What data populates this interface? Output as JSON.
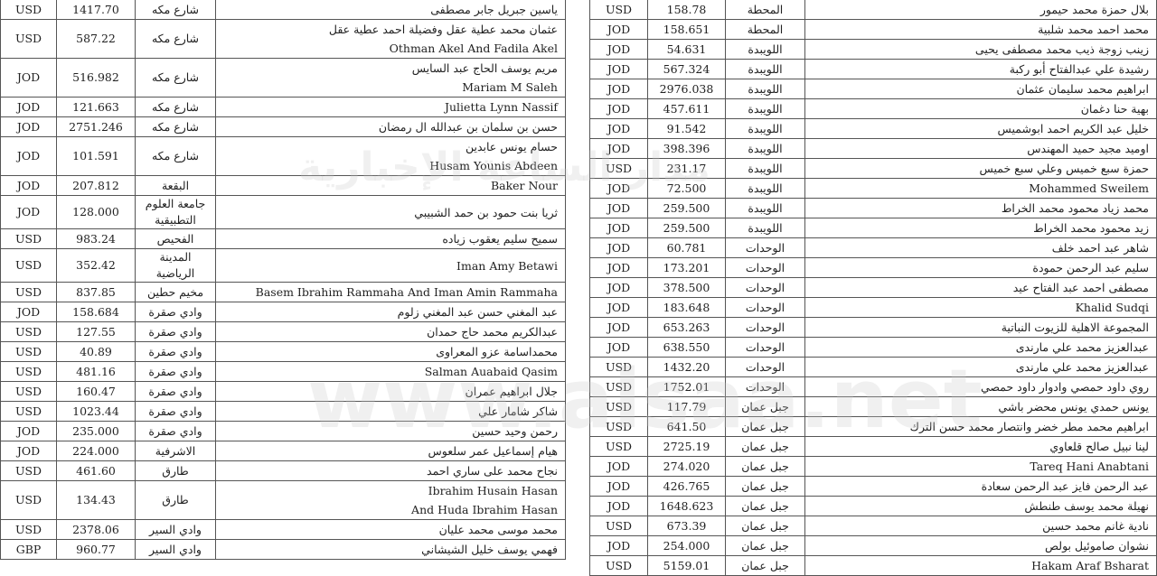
{
  "left_table": {
    "rows": [
      {
        "currency": "USD",
        "amount": "1417.70",
        "area": "شارع مكه",
        "name": [
          "ياسين جبريل جابر مصطفى"
        ]
      },
      {
        "currency": "USD",
        "amount": "587.22",
        "area": "شارع مكه",
        "name": [
          "عثمان محمد عطية عقل وفضيلة احمد عطية عقل",
          "Othman Akel And Fadila Akel"
        ]
      },
      {
        "currency": "JOD",
        "amount": "516.982",
        "area": "شارع مكه",
        "name": [
          "مريم يوسف الحاج عبد السايس",
          "Mariam M Saleh"
        ]
      },
      {
        "currency": "JOD",
        "amount": "121.663",
        "area": "شارع مكه",
        "name": [
          "Julietta Lynn Nassif"
        ]
      },
      {
        "currency": "JOD",
        "amount": "2751.246",
        "area": "شارع مكه",
        "name": [
          "حسن بن سلمان بن عبدالله ال رمضان"
        ]
      },
      {
        "currency": "JOD",
        "amount": "101.591",
        "area": "شارع مكه",
        "name": [
          "حسام يونس عابدين",
          "Husam Younis Abdeen"
        ]
      },
      {
        "currency": "JOD",
        "amount": "207.812",
        "area": "البقعة",
        "name": [
          "Baker Nour"
        ]
      },
      {
        "currency": "JOD",
        "amount": "128.000",
        "area": "جامعة العلوم التطبيقية",
        "name": [
          "ثريا بنت حمود بن حمد الشبيبي"
        ]
      },
      {
        "currency": "USD",
        "amount": "983.24",
        "area": "الفحيص",
        "name": [
          "سميح سليم يعقوب زياده"
        ]
      },
      {
        "currency": "USD",
        "amount": "352.42",
        "area": "المدينة الرياضية",
        "name": [
          "Iman Amy Betawi"
        ]
      },
      {
        "currency": "USD",
        "amount": "837.85",
        "area": "مخيم حطين",
        "name": [
          "Basem Ibrahim Rammaha And Iman Amin Rammaha"
        ]
      },
      {
        "currency": "JOD",
        "amount": "158.684",
        "area": "وادي صقرة",
        "name": [
          "عبد المغني حسن عبد المغني زلوم"
        ]
      },
      {
        "currency": "USD",
        "amount": "127.55",
        "area": "وادي صقرة",
        "name": [
          "عبدالكريم محمد حاج حمدان"
        ]
      },
      {
        "currency": "USD",
        "amount": "40.89",
        "area": "وادي صقرة",
        "name": [
          "محمداسامة عزو المعراوى"
        ]
      },
      {
        "currency": "USD",
        "amount": "481.16",
        "area": "وادي صقرة",
        "name": [
          "Salman Auabaid Qasim"
        ]
      },
      {
        "currency": "USD",
        "amount": "160.47",
        "area": "وادي صقرة",
        "name": [
          "جلال ابراهيم عمران"
        ]
      },
      {
        "currency": "USD",
        "amount": "1023.44",
        "area": "وادي صقرة",
        "name": [
          "شاكر شامار علي"
        ]
      },
      {
        "currency": "JOD",
        "amount": "235.000",
        "area": "وادي صقرة",
        "name": [
          "رحمن وحيد حسين"
        ]
      },
      {
        "currency": "JOD",
        "amount": "224.000",
        "area": "الاشرفية",
        "name": [
          "هيام إسماعيل عمر سلعوس"
        ]
      },
      {
        "currency": "USD",
        "amount": "461.60",
        "area": "طارق",
        "name": [
          "نجاح محمد على ساري احمد"
        ]
      },
      {
        "currency": "USD",
        "amount": "134.43",
        "area": "طارق",
        "name": [
          "Ibrahim Husain Hasan",
          "And Huda Ibrahim Hasan"
        ]
      },
      {
        "currency": "USD",
        "amount": "2378.06",
        "area": "وادي السير",
        "name": [
          "محمد موسى محمد عليان"
        ]
      },
      {
        "currency": "GBP",
        "amount": "960.77",
        "area": "وادي السير",
        "name": [
          "فهمي يوسف خليل الشيشاني"
        ]
      }
    ]
  },
  "right_table": {
    "rows": [
      {
        "currency": "USD",
        "amount": "158.78",
        "area": "المحطة",
        "name": [
          "بلال حمزة محمد حيمور"
        ]
      },
      {
        "currency": "JOD",
        "amount": "158.651",
        "area": "المحطة",
        "name": [
          "محمد احمد محمد شلبية"
        ]
      },
      {
        "currency": "JOD",
        "amount": "54.631",
        "area": "اللويبدة",
        "name": [
          "زينب زوجة ذيب محمد مصطفى يحيى"
        ]
      },
      {
        "currency": "JOD",
        "amount": "567.324",
        "area": "اللويبدة",
        "name": [
          "رشيدة علي عبدالفتاح أبو ركبة"
        ]
      },
      {
        "currency": "JOD",
        "amount": "2976.038",
        "area": "اللويبدة",
        "name": [
          "ابراهيم محمد سليمان عثمان"
        ]
      },
      {
        "currency": "JOD",
        "amount": "457.611",
        "area": "اللويبدة",
        "name": [
          "بهية حنا دغمان"
        ]
      },
      {
        "currency": "JOD",
        "amount": "91.542",
        "area": "اللويبدة",
        "name": [
          "خليل عبد الكريم احمد ابوشميس"
        ]
      },
      {
        "currency": "JOD",
        "amount": "398.396",
        "area": "اللويبدة",
        "name": [
          "اوميد مجيد حميد المهندس"
        ]
      },
      {
        "currency": "USD",
        "amount": "231.17",
        "area": "اللويبدة",
        "name": [
          "حمزة سبع خميس وعلي سبع خميس"
        ]
      },
      {
        "currency": "JOD",
        "amount": "72.500",
        "area": "اللويبدة",
        "name": [
          "Mohammed Sweilem"
        ]
      },
      {
        "currency": "JOD",
        "amount": "259.500",
        "area": "اللويبدة",
        "name": [
          "محمد زياد محمود محمد الخراط"
        ]
      },
      {
        "currency": "JOD",
        "amount": "259.500",
        "area": "اللويبدة",
        "name": [
          "زيد محمود محمد الخراط"
        ]
      },
      {
        "currency": "JOD",
        "amount": "60.781",
        "area": "الوحدات",
        "name": [
          "شاهر عبد احمد خلف"
        ]
      },
      {
        "currency": "JOD",
        "amount": "173.201",
        "area": "الوحدات",
        "name": [
          "سليم عبد الرحمن حمودة"
        ]
      },
      {
        "currency": "JOD",
        "amount": "378.500",
        "area": "الوحدات",
        "name": [
          "مصطفى احمد عبد الفتاح عيد"
        ]
      },
      {
        "currency": "JOD",
        "amount": "183.648",
        "area": "الوحدات",
        "name": [
          "Khalid Sudqi"
        ]
      },
      {
        "currency": "JOD",
        "amount": "653.263",
        "area": "الوحدات",
        "name": [
          "المجموعة الاهلية للزيوت النباتية"
        ]
      },
      {
        "currency": "JOD",
        "amount": "638.550",
        "area": "الوحدات",
        "name": [
          "عبدالعزيز محمد علي مارندى"
        ]
      },
      {
        "currency": "USD",
        "amount": "1432.20",
        "area": "الوحدات",
        "name": [
          "عبدالعزيز محمد علي مارندى"
        ]
      },
      {
        "currency": "USD",
        "amount": "1752.01",
        "area": "الوحدات",
        "name": [
          "روي داود حمصي وادوار داود حمصي"
        ]
      },
      {
        "currency": "USD",
        "amount": "117.79",
        "area": "جبل عمان",
        "name": [
          "يونس حمدي يونس محضر باشي"
        ]
      },
      {
        "currency": "USD",
        "amount": "641.50",
        "area": "جبل عمان",
        "name": [
          "ابراهيم محمد مطر خضر وانتصار محمد حسن الترك"
        ]
      },
      {
        "currency": "USD",
        "amount": "2725.19",
        "area": "جبل عمان",
        "name": [
          "لينا نبيل صالح قلعاوي"
        ]
      },
      {
        "currency": "JOD",
        "amount": "274.020",
        "area": "جبل عمان",
        "name": [
          "Tareq Hani Anabtani"
        ]
      },
      {
        "currency": "JOD",
        "amount": "426.765",
        "area": "جبل عمان",
        "name": [
          "عبد الرحمن فايز عبد الرحمن سعادة"
        ]
      },
      {
        "currency": "JOD",
        "amount": "1648.623",
        "area": "جبل عمان",
        "name": [
          "نهيلة محمد يوسف طنطش"
        ]
      },
      {
        "currency": "USD",
        "amount": "673.39",
        "area": "جبل عمان",
        "name": [
          "نادية غانم محمد حسين"
        ]
      },
      {
        "currency": "JOD",
        "amount": "254.000",
        "area": "جبل عمان",
        "name": [
          "نشوان صاموئيل بولص"
        ]
      },
      {
        "currency": "USD",
        "amount": "5159.01",
        "area": "جبل عمان",
        "name": [
          "Hakam Araf Bsharat"
        ]
      }
    ]
  },
  "watermark": {
    "text_ar": "مدار الساعة الإخبارية",
    "text_url": "www.alsaa.net",
    "accent": "#f0a070"
  }
}
